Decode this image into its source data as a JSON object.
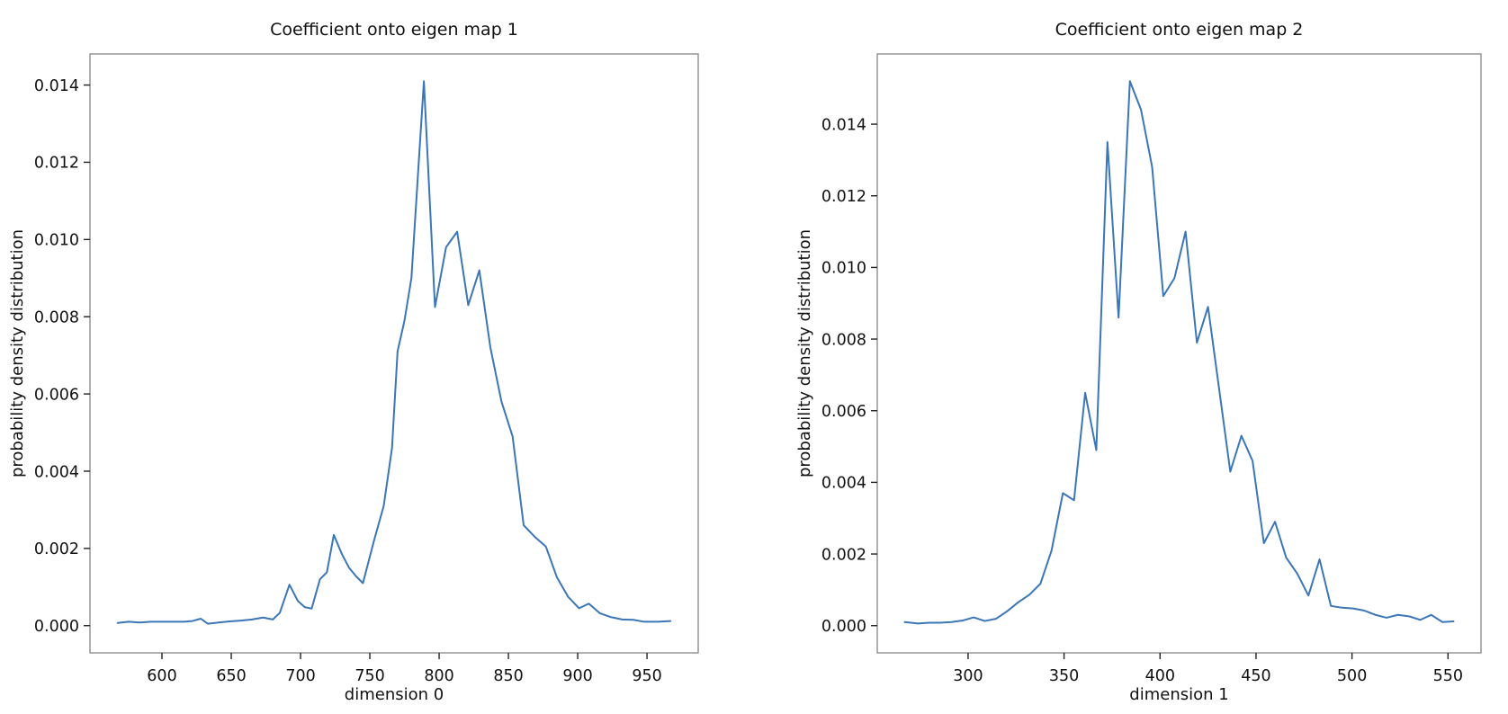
{
  "figure": {
    "background": "#ffffff",
    "spine_color": "#8e8e8e",
    "tick_color": "#222222",
    "text_color": "#111111"
  },
  "chart_data": [
    {
      "type": "line",
      "title": "Coefficient onto eigen map 1",
      "xlabel": "dimension 0",
      "ylabel": "probability density distribution",
      "line_color": "#3b76b6",
      "grid": false,
      "legend": null,
      "xlim": [
        548.05,
        986.95
      ],
      "ylim": [
        -0.000705,
        0.014805
      ],
      "xtick_labels": [
        "600",
        "650",
        "700",
        "750",
        "800",
        "850",
        "900",
        "950"
      ],
      "xticks": [
        600,
        650,
        700,
        750,
        800,
        850,
        900,
        950
      ],
      "ytick_labels": [
        "0.000",
        "0.002",
        "0.004",
        "0.006",
        "0.008",
        "0.010",
        "0.012",
        "0.014"
      ],
      "yticks": [
        0.0,
        0.002,
        0.004,
        0.006,
        0.008,
        0.01,
        0.012,
        0.014
      ],
      "x": [
        568,
        576,
        584,
        592,
        600,
        608,
        616,
        622,
        628,
        633,
        641,
        649,
        657,
        665,
        673,
        680,
        685,
        692,
        698,
        703,
        708,
        714,
        719,
        724,
        730,
        735,
        740,
        745,
        753,
        760,
        766,
        770,
        775,
        780,
        789,
        797,
        805,
        813,
        821,
        829,
        837,
        845,
        853,
        861,
        869,
        877,
        885,
        893,
        901,
        908,
        916,
        924,
        932,
        940,
        948,
        958,
        967
      ],
      "values": [
        7e-05,
        0.0001,
        8e-05,
        0.0001,
        0.0001,
        0.0001,
        0.0001,
        0.00012,
        0.00018,
        5e-05,
        8e-05,
        0.00011,
        0.00013,
        0.00016,
        0.00021,
        0.00016,
        0.00033,
        0.00106,
        0.00064,
        0.00048,
        0.00044,
        0.0012,
        0.00138,
        0.00235,
        0.00184,
        0.0015,
        0.00128,
        0.0011,
        0.0022,
        0.0031,
        0.0046,
        0.0071,
        0.0079,
        0.009,
        0.0141,
        0.00825,
        0.0098,
        0.0102,
        0.0083,
        0.0092,
        0.0072,
        0.0058,
        0.0049,
        0.0026,
        0.0023,
        0.00205,
        0.00125,
        0.00075,
        0.00045,
        0.00057,
        0.00032,
        0.00022,
        0.00016,
        0.00015,
        0.0001,
        0.0001,
        0.00012
      ]
    },
    {
      "type": "line",
      "title": "Coefficient onto eigen map 2",
      "xlabel": "dimension 1",
      "ylabel": "probability density distribution",
      "line_color": "#3b76b6",
      "grid": false,
      "legend": null,
      "xlim": [
        252.7,
        567.2
      ],
      "ylim": [
        -0.00076,
        0.01596
      ],
      "xtick_labels": [
        "300",
        "350",
        "400",
        "450",
        "500",
        "550"
      ],
      "xticks": [
        300,
        350,
        400,
        450,
        500,
        550
      ],
      "ytick_labels": [
        "0.000",
        "0.002",
        "0.004",
        "0.006",
        "0.008",
        "0.010",
        "0.012",
        "0.014"
      ],
      "yticks": [
        0.0,
        0.002,
        0.004,
        0.006,
        0.008,
        0.01,
        0.012,
        0.014
      ],
      "x": [
        267,
        273.8,
        279.6,
        285.4,
        291.2,
        297,
        302.9,
        308.7,
        314.5,
        320.3,
        326.1,
        331.9,
        337.7,
        343.5,
        349.4,
        355.2,
        361,
        366.8,
        372.6,
        378.4,
        384.3,
        390.1,
        395.9,
        401.7,
        407.5,
        413.3,
        419.2,
        425,
        430.8,
        436.6,
        442.4,
        448.2,
        454.1,
        459.9,
        465.7,
        471.5,
        477.3,
        483.1,
        489,
        494.8,
        500.6,
        506.4,
        512.2,
        518,
        523.9,
        529.7,
        535.5,
        541.3,
        547.1,
        552.9
      ],
      "values": [
        0.0001,
        6e-05,
        8e-05,
        8e-05,
        0.0001,
        0.00014,
        0.00023,
        0.00013,
        0.00019,
        0.0004,
        0.00065,
        0.00086,
        0.00117,
        0.0021,
        0.0037,
        0.0035,
        0.0065,
        0.0049,
        0.0135,
        0.0086,
        0.0152,
        0.0144,
        0.0128,
        0.0092,
        0.0097,
        0.011,
        0.0079,
        0.0089,
        0.0066,
        0.0043,
        0.0053,
        0.0046,
        0.0023,
        0.0029,
        0.0019,
        0.00145,
        0.00084,
        0.00185,
        0.00055,
        0.0005,
        0.00048,
        0.00042,
        0.0003,
        0.00022,
        0.0003,
        0.00026,
        0.00016,
        0.0003,
        0.0001,
        0.00012
      ]
    }
  ]
}
